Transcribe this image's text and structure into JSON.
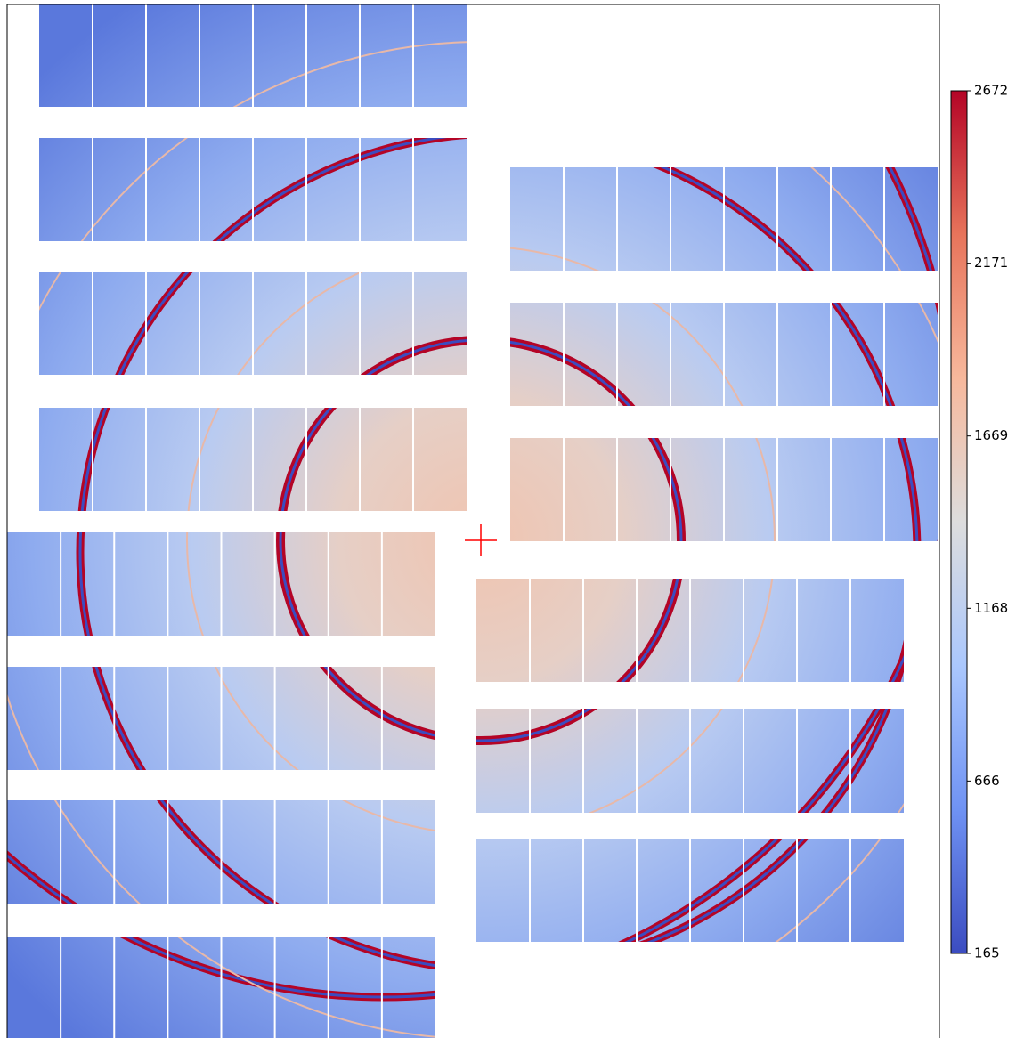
{
  "chart_data": {
    "type": "image",
    "colormap": "coolwarm",
    "clim": [
      165,
      2672
    ],
    "cticks": [
      165,
      666,
      1168,
      1669,
      2171,
      2672
    ]
  }
}
